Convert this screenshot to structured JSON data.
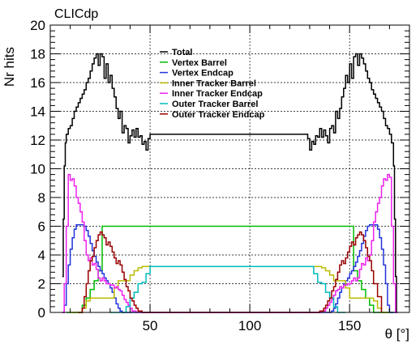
{
  "chart_data": {
    "type": "line",
    "style": "step",
    "label": "CLICdp",
    "xlabel": "θ [°]",
    "ylabel": "Nr hits",
    "xlim": [
      0,
      180
    ],
    "ylim": [
      0,
      20
    ],
    "x_ticks": [
      50,
      100,
      150
    ],
    "y_ticks": [
      0,
      2,
      4,
      6,
      8,
      10,
      12,
      14,
      16,
      18,
      20
    ],
    "grid": true,
    "legend_position": "top-center",
    "series": [
      {
        "name": "Total",
        "color": "#000000",
        "x": [
          6,
          6.5,
          7,
          7.5,
          8,
          9,
          10,
          11,
          12,
          13,
          14,
          15,
          16,
          17,
          18,
          19,
          20,
          21,
          22,
          23,
          24,
          25,
          26,
          27,
          28,
          29,
          30,
          31,
          32,
          33,
          34,
          35,
          36,
          37,
          38,
          39,
          40,
          41,
          42,
          43,
          44,
          45,
          46,
          47,
          48,
          49,
          50,
          51,
          60,
          80,
          100,
          120,
          129,
          130,
          131,
          132,
          133,
          134,
          135,
          136,
          137,
          138,
          139,
          140,
          141,
          142,
          143,
          144,
          145,
          146,
          147,
          148,
          149,
          150,
          151,
          152,
          153,
          154,
          155,
          156,
          157,
          158,
          159,
          160,
          161,
          162,
          163,
          164,
          165,
          166,
          167,
          168,
          169,
          170,
          171,
          172,
          172.5,
          173,
          173.5,
          174
        ],
        "y": [
          2.5,
          6.5,
          10.2,
          11.8,
          12.4,
          12.8,
          13.0,
          13.5,
          14.0,
          14.3,
          14.6,
          14.9,
          15.2,
          15.5,
          16.0,
          16.3,
          16.8,
          17.3,
          17.7,
          18.0,
          17.2,
          18.0,
          17.8,
          16.3,
          17.3,
          16.0,
          16.5,
          15.6,
          15.0,
          14.2,
          13.5,
          14.0,
          12.5,
          13.0,
          12.8,
          11.8,
          12.3,
          12.7,
          12.2,
          12.8,
          12.2,
          12.3,
          11.7,
          11.9,
          11.3,
          12.1,
          12.4,
          12.4,
          12.4,
          12.4,
          12.4,
          12.4,
          12.1,
          11.3,
          11.9,
          11.7,
          12.3,
          12.2,
          12.8,
          12.2,
          12.7,
          12.3,
          11.8,
          12.8,
          13.0,
          12.5,
          14.0,
          13.5,
          14.2,
          15.0,
          15.6,
          16.5,
          16.0,
          17.3,
          16.3,
          17.8,
          18.0,
          17.2,
          18.0,
          17.7,
          17.3,
          16.8,
          16.3,
          16.0,
          15.5,
          15.2,
          14.9,
          14.6,
          14.3,
          14.0,
          13.5,
          13.0,
          12.8,
          12.4,
          11.8,
          10.2,
          6.5,
          2.5,
          0,
          0
        ]
      },
      {
        "name": "Vertex Barrel",
        "color": "#00bb00",
        "x": [
          8,
          14,
          16,
          18,
          20,
          22,
          24,
          26,
          28,
          30,
          60,
          90,
          120,
          150,
          152,
          154,
          156,
          158,
          160,
          162,
          164,
          166,
          172
        ],
        "y": [
          0,
          0,
          0.5,
          1.0,
          1.6,
          2.2,
          2.9,
          6.0,
          6.0,
          6.0,
          6.0,
          6.0,
          6.0,
          6.0,
          2.9,
          2.2,
          1.6,
          1.0,
          0.5,
          0,
          0,
          0,
          0
        ]
      },
      {
        "name": "Vertex Endcap",
        "color": "#2233dd",
        "x": [
          6,
          7,
          8,
          9,
          10,
          11,
          12,
          13,
          14,
          15,
          16,
          17,
          18,
          19,
          20,
          21,
          22,
          23,
          24,
          25,
          26,
          27,
          28,
          29,
          30,
          31,
          32,
          33,
          34,
          35,
          36,
          37,
          38,
          60,
          140,
          141,
          142,
          143,
          144,
          145,
          146,
          147,
          148,
          149,
          150,
          151,
          152,
          153,
          154,
          155,
          156,
          157,
          158,
          159,
          160,
          161,
          162,
          163,
          164,
          165,
          166,
          167,
          168,
          169,
          170,
          171,
          172,
          173
        ],
        "y": [
          0,
          0.5,
          2.0,
          3.3,
          4.4,
          5.2,
          5.8,
          6.1,
          6.1,
          6.1,
          6.1,
          6.0,
          5.7,
          5.3,
          4.8,
          4.3,
          3.9,
          3.5,
          3.2,
          2.9,
          2.7,
          2.4,
          2.2,
          2.0,
          1.7,
          1.4,
          1.0,
          0.6,
          0.3,
          0.1,
          0,
          0,
          0,
          0,
          0,
          0.1,
          0.3,
          0.6,
          1.0,
          1.4,
          1.7,
          2.0,
          2.2,
          2.4,
          2.7,
          2.9,
          3.2,
          3.5,
          3.9,
          4.3,
          4.8,
          5.3,
          5.7,
          6.0,
          6.1,
          6.1,
          6.1,
          6.1,
          5.8,
          5.2,
          4.4,
          3.3,
          2.0,
          0.5,
          0,
          0,
          0,
          0
        ]
      },
      {
        "name": "Inner Tracker Barrel",
        "color": "#bbbb00",
        "x": [
          10,
          12,
          14,
          16,
          18,
          20,
          22,
          24,
          26,
          28,
          30,
          32,
          34,
          36,
          38,
          40,
          42,
          44,
          46,
          48,
          50,
          60,
          90,
          120,
          130,
          132,
          134,
          136,
          138,
          140,
          142,
          144,
          146,
          148,
          150,
          152,
          154,
          156,
          158,
          160,
          162,
          164,
          166,
          168,
          170
        ],
        "y": [
          0,
          0,
          0,
          0.3,
          0.8,
          1.0,
          1.0,
          1.0,
          1.0,
          1.0,
          1.0,
          1.7,
          2.2,
          2.2,
          2.2,
          2.6,
          2.9,
          3.1,
          3.2,
          3.2,
          3.2,
          3.2,
          3.2,
          3.2,
          3.2,
          3.2,
          3.2,
          3.1,
          2.9,
          2.6,
          2.2,
          2.2,
          2.2,
          1.7,
          1.0,
          1.0,
          1.0,
          1.0,
          1.0,
          1.0,
          0.8,
          0.3,
          0,
          0,
          0
        ]
      },
      {
        "name": "Inner Tracker Endcap",
        "color": "#ee22ee",
        "x": [
          6,
          7,
          8,
          9,
          10,
          11,
          12,
          13,
          14,
          15,
          16,
          17,
          18,
          19,
          20,
          21,
          22,
          23,
          24,
          25,
          26,
          27,
          28,
          29,
          30,
          31,
          32,
          33,
          34,
          35,
          36,
          37,
          38,
          39,
          40,
          41,
          42,
          43,
          44,
          46,
          60,
          130,
          134,
          136,
          137,
          138,
          139,
          140,
          141,
          142,
          143,
          144,
          145,
          146,
          147,
          148,
          149,
          150,
          151,
          152,
          153,
          154,
          155,
          156,
          157,
          158,
          159,
          160,
          161,
          162,
          163,
          164,
          165,
          166,
          167,
          168,
          169,
          170,
          171,
          172,
          173,
          174
        ],
        "y": [
          0,
          2.0,
          6.0,
          9.6,
          9.2,
          9.3,
          8.8,
          8.0,
          7.6,
          7.0,
          6.3,
          5.0,
          4.0,
          3.6,
          3.8,
          3.3,
          3.4,
          3.0,
          2.4,
          2.2,
          2.4,
          2.2,
          2.0,
          2.0,
          1.9,
          1.9,
          1.7,
          1.8,
          1.6,
          1.5,
          1.2,
          0.9,
          0.7,
          0.5,
          0.3,
          0.1,
          0.1,
          0,
          0,
          0,
          0,
          0,
          0,
          0.1,
          0.1,
          0.3,
          0.5,
          0.7,
          0.9,
          1.2,
          1.5,
          1.6,
          1.8,
          1.7,
          1.9,
          1.9,
          2.0,
          2.0,
          2.2,
          2.4,
          2.2,
          2.4,
          3.0,
          3.4,
          3.3,
          3.8,
          3.6,
          4.0,
          5.0,
          6.3,
          7.0,
          7.6,
          8.0,
          8.8,
          9.3,
          9.2,
          9.6,
          9.4,
          6.0,
          2.0,
          0,
          0
        ]
      },
      {
        "name": "Outer Tracker Barrel",
        "color": "#00bbbb",
        "x": [
          30,
          36,
          38,
          40,
          42,
          44,
          46,
          48,
          50,
          60,
          90,
          120,
          130,
          132,
          134,
          136,
          138,
          140,
          142,
          144,
          146,
          148
        ],
        "y": [
          0,
          0,
          0.4,
          1.0,
          1.4,
          2.0,
          2.1,
          2.7,
          3.2,
          3.2,
          3.2,
          3.2,
          3.2,
          2.7,
          2.1,
          2.0,
          1.4,
          1.0,
          0.4,
          0,
          0,
          0
        ]
      },
      {
        "name": "Outer Tracker Endcap",
        "color": "#990000",
        "x": [
          14,
          16,
          17,
          18,
          19,
          20,
          21,
          22,
          23,
          24,
          25,
          26,
          27,
          28,
          29,
          30,
          31,
          32,
          33,
          34,
          35,
          36,
          37,
          38,
          39,
          40,
          41,
          42,
          43,
          44,
          45,
          46,
          48,
          60,
          130,
          134,
          135,
          136,
          137,
          138,
          139,
          140,
          141,
          142,
          143,
          144,
          145,
          146,
          147,
          148,
          149,
          150,
          151,
          152,
          153,
          154,
          155,
          156,
          157,
          158,
          159,
          160,
          161,
          162,
          164,
          166
        ],
        "y": [
          0,
          0.3,
          1.1,
          2.0,
          2.9,
          3.6,
          3.9,
          4.5,
          5.0,
          5.4,
          5.6,
          5.4,
          5.2,
          4.7,
          4.9,
          4.6,
          4.2,
          3.8,
          3.4,
          3.6,
          3.3,
          2.8,
          2.3,
          1.8,
          1.5,
          1.0,
          0.8,
          0.5,
          0.3,
          0.1,
          0.1,
          0,
          0,
          0,
          0,
          0,
          0.1,
          0.1,
          0.3,
          0.5,
          0.8,
          1.0,
          1.5,
          1.8,
          2.3,
          2.8,
          3.3,
          3.6,
          3.4,
          3.8,
          4.2,
          4.6,
          4.9,
          4.7,
          5.2,
          5.4,
          5.6,
          5.4,
          5.0,
          4.5,
          3.9,
          3.6,
          2.9,
          2.0,
          1.1,
          0
        ]
      }
    ]
  }
}
